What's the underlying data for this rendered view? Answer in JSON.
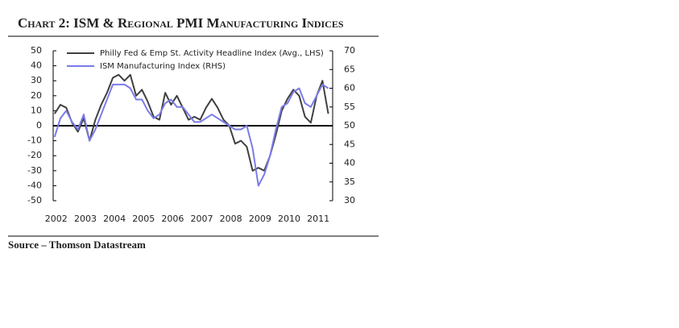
{
  "chart_data": {
    "type": "line",
    "title": "Chart 2: ISM & Regional PMI Manufacturing Indices",
    "source": "Source – Thomson Datastream",
    "x": [
      2002.0,
      2002.2,
      2002.4,
      2002.6,
      2002.8,
      2003.0,
      2003.2,
      2003.4,
      2003.6,
      2003.8,
      2004.0,
      2004.2,
      2004.4,
      2004.6,
      2004.8,
      2005.0,
      2005.2,
      2005.4,
      2005.6,
      2005.8,
      2006.0,
      2006.2,
      2006.4,
      2006.6,
      2006.8,
      2007.0,
      2007.2,
      2007.4,
      2007.6,
      2007.8,
      2008.0,
      2008.2,
      2008.4,
      2008.6,
      2008.8,
      2009.0,
      2009.2,
      2009.4,
      2009.6,
      2009.8,
      2010.0,
      2010.2,
      2010.4,
      2010.6,
      2010.8,
      2011.0,
      2011.2,
      2011.4
    ],
    "series": [
      {
        "name": "Philly Fed & Emp St. Activity Headline Index (Avg., LHS)",
        "color": "#404040",
        "axis": "y",
        "values": [
          8,
          14,
          12,
          2,
          -4,
          5,
          -10,
          4,
          14,
          22,
          32,
          34,
          30,
          34,
          20,
          24,
          16,
          6,
          4,
          22,
          14,
          20,
          12,
          4,
          6,
          4,
          12,
          18,
          12,
          4,
          0,
          -12,
          -10,
          -14,
          -30,
          -28,
          -30,
          -20,
          -6,
          10,
          18,
          24,
          20,
          6,
          2,
          20,
          30,
          8
        ]
      },
      {
        "name": "ISM Manufacturing Index (RHS)",
        "color": "#7b7bea",
        "axis": "y2",
        "values": [
          47,
          52,
          54,
          51,
          49,
          53,
          46,
          49,
          53,
          57,
          61,
          61,
          61,
          60,
          57,
          57,
          54,
          52,
          53,
          56,
          57,
          55,
          55,
          53,
          51,
          51,
          52,
          53,
          52,
          51,
          50,
          49,
          49,
          50,
          44,
          34,
          37,
          42,
          49,
          55,
          56,
          59,
          60,
          56,
          55,
          58,
          61,
          60
        ]
      }
    ],
    "xlim": [
      2001.95,
      2011.55
    ],
    "xticks": [
      2002,
      2003,
      2004,
      2005,
      2006,
      2007,
      2008,
      2009,
      2010,
      2011
    ],
    "ylim": [
      -50,
      50
    ],
    "yticks": [
      50,
      40,
      30,
      20,
      10,
      0,
      -10,
      -20,
      -30,
      -40,
      -50
    ],
    "y2lim": [
      30,
      70
    ],
    "y2ticks": [
      70,
      65,
      60,
      55,
      50,
      45,
      40,
      35,
      30
    ]
  }
}
